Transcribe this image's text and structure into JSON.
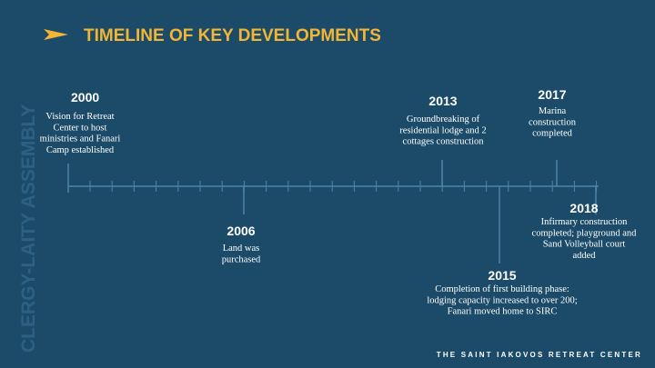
{
  "side_text": "CLERGY-LAITY ASSEMBLY",
  "title": "TIMELINE OF KEY DEVELOPMENTS",
  "footer": "THE SAINT IAKOVOS RETREAT CENTER",
  "events": [
    {
      "year": "2000",
      "lines": [
        "Vision for Retreat",
        "Center to host",
        "ministries and Fanari",
        "Camp established"
      ]
    },
    {
      "year": "2006",
      "lines": [
        "Land was",
        "purchased"
      ]
    },
    {
      "year": "2013",
      "lines": [
        "Groundbreaking of",
        "residential lodge and 2",
        "cottages construction"
      ]
    },
    {
      "year": "2015",
      "lines": [
        "Completion of first building phase:",
        "lodging capacity increased to over 200;",
        "Fanari moved home to SIRC"
      ]
    },
    {
      "year": "2017",
      "lines": [
        "Marina",
        "construction",
        "completed"
      ]
    },
    {
      "year": "2018",
      "lines": [
        "Infirmary construction",
        "completed; playground and",
        "Sand Volleyball court",
        "added"
      ]
    }
  ]
}
